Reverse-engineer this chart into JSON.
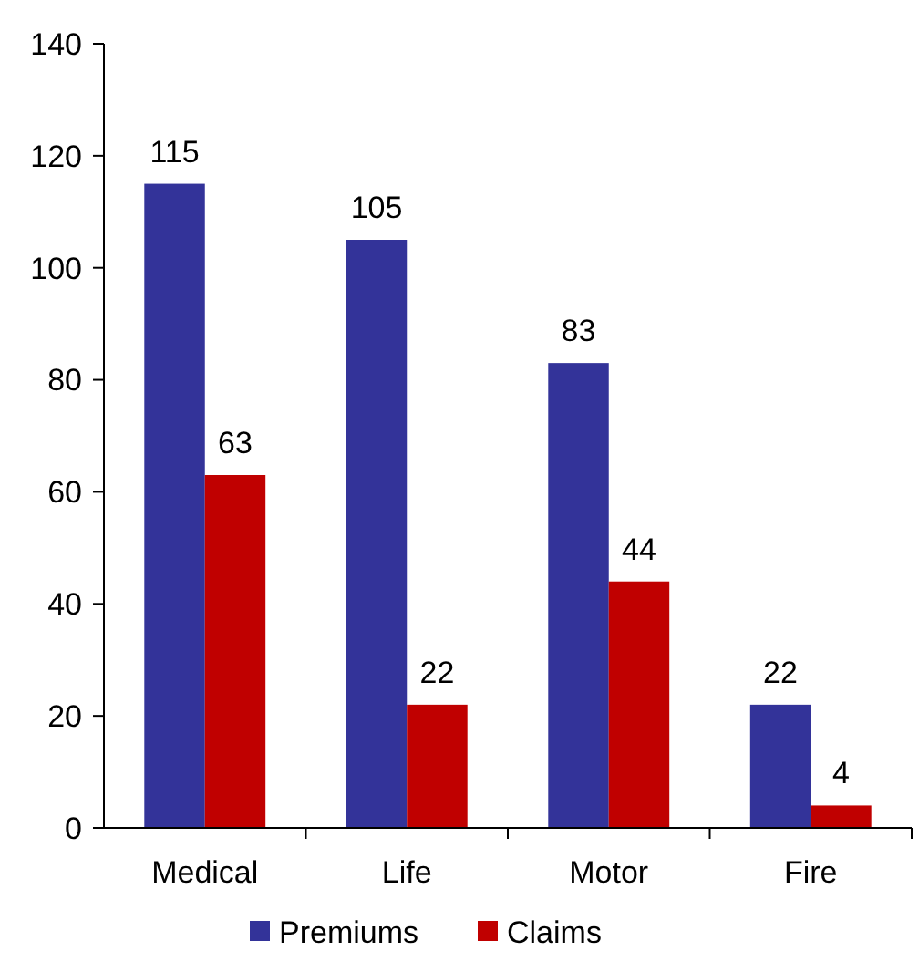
{
  "chart_data": {
    "type": "bar",
    "categories": [
      "Medical",
      "Life",
      "Motor",
      "Fire"
    ],
    "series": [
      {
        "name": "Premiums",
        "color": "#333399",
        "values": [
          115,
          105,
          83,
          22
        ]
      },
      {
        "name": "Claims",
        "color": "#c00000",
        "values": [
          63,
          22,
          44,
          4
        ]
      }
    ],
    "ylim": [
      0,
      140
    ],
    "yticks": [
      0,
      20,
      40,
      60,
      80,
      100,
      120,
      140
    ],
    "grid": false,
    "legend": "bottom",
    "data_labels": true
  }
}
